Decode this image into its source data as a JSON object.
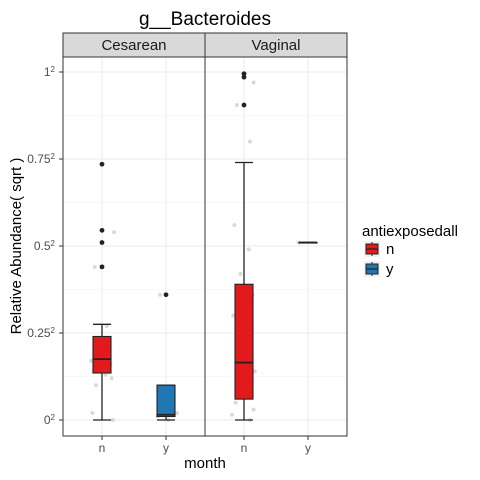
{
  "chart_data": {
    "type": "box",
    "title": "g__Bacteroides",
    "xlabel": "month",
    "ylabel": "Relative Abundance( sqrt )",
    "y_scale": "sqrt",
    "ylim": [
      0,
      1
    ],
    "y_ticks": [
      {
        "value": 0,
        "base": "0",
        "exp": "2"
      },
      {
        "value": 0.25,
        "base": "0.25",
        "exp": "2"
      },
      {
        "value": 0.5,
        "base": "0.5",
        "exp": "2"
      },
      {
        "value": 0.75,
        "base": "0.75",
        "exp": "2"
      },
      {
        "value": 1,
        "base": "1",
        "exp": "2"
      }
    ],
    "categories": [
      "n",
      "y"
    ],
    "grid": true,
    "legend": {
      "title": "antiexposedall",
      "placement": "right",
      "entries": [
        {
          "label": "n",
          "color": "#e31a1c"
        },
        {
          "label": "y",
          "color": "#1f78b4"
        }
      ]
    },
    "facets": [
      {
        "label": "Cesarean",
        "boxes": [
          {
            "category": "n",
            "color": "#e31a1c",
            "min": 0.0,
            "q1": 0.135,
            "median": 0.175,
            "q3": 0.24,
            "max": 0.275,
            "outliers": [
              0.735,
              0.545,
              0.51,
              0.44
            ],
            "jitter": [
              [
                -0.06,
                0.44
              ],
              [
                0.02,
                0.23
              ],
              [
                0.05,
                0.2
              ],
              [
                -0.04,
                0.18
              ],
              [
                0.07,
                0.16
              ],
              [
                -0.07,
                0.14
              ],
              [
                0.03,
                0.13
              ],
              [
                0.08,
                0.12
              ],
              [
                -0.05,
                0.1
              ],
              [
                -0.08,
                0.02
              ],
              [
                0.09,
                0.0
              ],
              [
                0.04,
                0.27
              ],
              [
                0.1,
                0.54
              ],
              [
                -0.02,
                0.18
              ],
              [
                0.06,
                0.19
              ],
              [
                -0.09,
                0.17
              ]
            ]
          },
          {
            "category": "y",
            "color": "#1f78b4",
            "min": 0.0,
            "q1": 0.01,
            "median": 0.015,
            "q3": 0.1,
            "max": 0.1,
            "outliers": [
              0.36
            ],
            "jitter": [
              [
                -0.05,
                0.36
              ],
              [
                0.06,
                0.02
              ],
              [
                -0.07,
                0.01
              ],
              [
                0.09,
                0.02
              ],
              [
                0.02,
                0.0
              ]
            ]
          }
        ]
      },
      {
        "label": "Vaginal",
        "boxes": [
          {
            "category": "n",
            "color": "#e31a1c",
            "min": 0.0,
            "q1": 0.06,
            "median": 0.165,
            "q3": 0.39,
            "max": 0.74,
            "outliers": [
              0.995,
              0.985,
              0.905
            ],
            "jitter": [
              [
                0.08,
                0.97
              ],
              [
                -0.06,
                0.905
              ],
              [
                0.05,
                0.8
              ],
              [
                -0.08,
                0.56
              ],
              [
                0.04,
                0.49
              ],
              [
                -0.03,
                0.42
              ],
              [
                0.07,
                0.36
              ],
              [
                -0.09,
                0.3
              ],
              [
                0.02,
                0.26
              ],
              [
                0.06,
                0.2
              ],
              [
                -0.05,
                0.17
              ],
              [
                0.09,
                0.14
              ],
              [
                -0.02,
                0.12
              ],
              [
                0.03,
                0.08
              ],
              [
                -0.07,
                0.05
              ],
              [
                0.08,
                0.03
              ],
              [
                -0.1,
                0.015
              ],
              [
                0.05,
                0.0
              ],
              [
                -0.04,
                0.22
              ]
            ]
          },
          {
            "category": "y",
            "color": "#1f78b4",
            "min": 0.51,
            "q1": 0.51,
            "median": 0.51,
            "q3": 0.51,
            "max": 0.51,
            "outliers": [],
            "jitter": [
              [
                -0.08,
                0.51
              ]
            ]
          }
        ]
      }
    ]
  }
}
